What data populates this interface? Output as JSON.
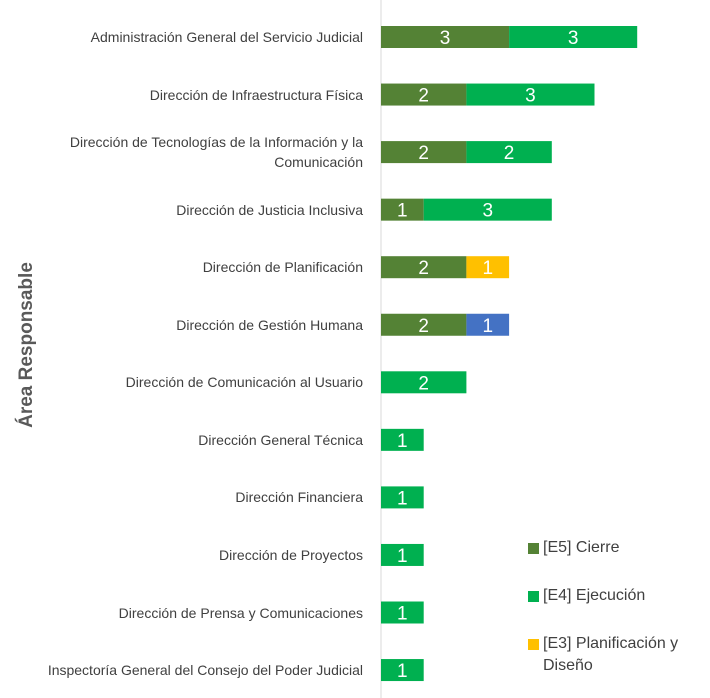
{
  "chart_data": {
    "type": "bar",
    "orientation": "horizontal",
    "stacked": true,
    "y_axis_label": "Área Responsable",
    "categories": [
      "Administración General del Servicio Judicial",
      "Dirección de Infraestructura Física",
      "Dirección de Tecnologías de la Información y la Comunicación",
      "Dirección de Justicia Inclusiva",
      "Dirección de Planificación",
      "Dirección de Gestión Humana",
      "Dirección de Comunicación al Usuario",
      "Dirección General Técnica",
      "Dirección Financiera",
      "Dirección de Proyectos",
      "Dirección de Prensa y Comunicaciones",
      "Inspectoría General del Consejo del Poder Judicial"
    ],
    "series": [
      {
        "name": "[E5] Cierre",
        "color": "#548235",
        "values": [
          3,
          2,
          2,
          1,
          2,
          2,
          null,
          null,
          null,
          null,
          null,
          null
        ]
      },
      {
        "name": "[E4] Ejecución",
        "color": "#00b050",
        "values": [
          3,
          3,
          2,
          3,
          null,
          null,
          2,
          1,
          1,
          1,
          1,
          1
        ]
      },
      {
        "name": "[E3] Planificación y Diseño",
        "color": "#ffc000",
        "values": [
          null,
          null,
          null,
          null,
          1,
          null,
          null,
          null,
          null,
          null,
          null,
          null
        ]
      },
      {
        "color": "#4472c4",
        "values": [
          null,
          null,
          null,
          null,
          null,
          1,
          null,
          null,
          null,
          null,
          null,
          null
        ]
      }
    ]
  }
}
